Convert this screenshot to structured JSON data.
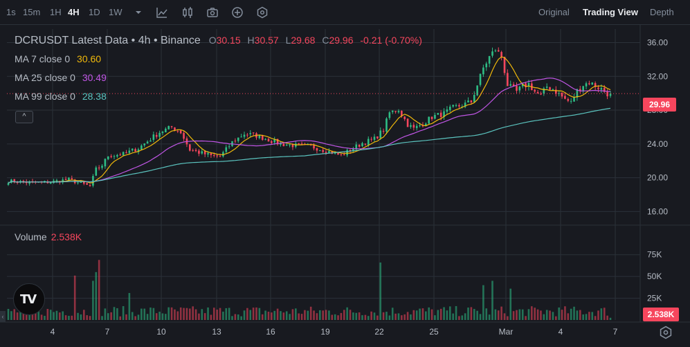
{
  "toolbar": {
    "timeframes": [
      "1s",
      "15m",
      "1H",
      "4H",
      "1D",
      "1W"
    ],
    "active_timeframe": "4H",
    "views": [
      "Original",
      "Trading View",
      "Depth"
    ],
    "active_view": "Trading View",
    "icons": [
      "chevron-down-icon",
      "indicator-icon",
      "candle-type-icon",
      "camera-icon",
      "add-icon",
      "settings-hex-icon"
    ]
  },
  "legend": {
    "title": "DCRUSDT Latest Data • 4h • Binance",
    "open_label": "O",
    "open": "30.15",
    "high_label": "H",
    "high": "30.57",
    "low_label": "L",
    "low": "29.68",
    "close_label": "C",
    "close": "29.96",
    "change": "-0.21 (-0.70%)",
    "ma7_label": "MA 7 close 0",
    "ma7_value": "30.60",
    "ma25_label": "MA 25 close 0",
    "ma25_value": "30.49",
    "ma99_label": "MA 99 close 0",
    "ma99_value": "28.38",
    "collapse_symbol": "^"
  },
  "volume": {
    "label": "Volume",
    "value": "2.538K",
    "tag": "2.538K"
  },
  "last_price_tag": "29.96",
  "colors": {
    "up": "#2ebd85",
    "down": "#f6465d",
    "ma7": "#f0b90b",
    "ma25": "#c156e6",
    "ma99": "#5bc4bf",
    "background": "#181a20",
    "grid": "#2b3139"
  },
  "chart_data": {
    "type": "candlestick",
    "title": "DCRUSDT Latest Data • 4h • Binance",
    "price_axis": {
      "ticks": [
        "36.00",
        "32.00",
        "28.00",
        "24.00",
        "20.00",
        "16.00"
      ],
      "range": [
        14.8,
        37.6
      ]
    },
    "volume_axis": {
      "ticks": [
        "75K",
        "50K",
        "25K"
      ],
      "range": [
        0,
        105000
      ]
    },
    "x_axis": {
      "ticks": [
        "4",
        "7",
        "10",
        "13",
        "16",
        "19",
        "22",
        "25",
        "Mar",
        "4",
        "7"
      ]
    },
    "close_waypoints": [
      [
        0,
        19.6
      ],
      [
        8,
        19.4
      ],
      [
        14,
        19.5
      ],
      [
        20,
        19.8
      ],
      [
        24,
        19.3
      ],
      [
        27,
        19.0
      ],
      [
        29,
        21.0
      ],
      [
        31,
        21.5
      ],
      [
        33,
        22.6
      ],
      [
        38,
        22.8
      ],
      [
        43,
        23.5
      ],
      [
        47,
        24.6
      ],
      [
        50,
        25.4
      ],
      [
        54,
        26.0
      ],
      [
        57,
        25.4
      ],
      [
        60,
        23.3
      ],
      [
        64,
        22.9
      ],
      [
        67,
        22.6
      ],
      [
        70,
        22.5
      ],
      [
        74,
        24.2
      ],
      [
        78,
        25.2
      ],
      [
        82,
        25.0
      ],
      [
        86,
        24.5
      ],
      [
        90,
        24.0
      ],
      [
        95,
        23.8
      ],
      [
        100,
        23.7
      ],
      [
        104,
        23.3
      ],
      [
        107,
        23.0
      ],
      [
        110,
        22.6
      ],
      [
        113,
        23.3
      ],
      [
        117,
        24.1
      ],
      [
        121,
        24.6
      ],
      [
        124,
        25.7
      ],
      [
        126,
        27.7
      ],
      [
        129,
        28.1
      ],
      [
        132,
        26.3
      ],
      [
        134,
        25.8
      ],
      [
        137,
        26.4
      ],
      [
        140,
        27.2
      ],
      [
        144,
        27.6
      ],
      [
        147,
        28.3
      ],
      [
        150,
        28.6
      ],
      [
        153,
        29.0
      ],
      [
        155,
        31.0
      ],
      [
        157,
        33.0
      ],
      [
        159,
        34.3
      ],
      [
        161,
        35.2
      ],
      [
        163,
        34.3
      ],
      [
        165,
        31.0
      ],
      [
        166,
        30.7
      ],
      [
        168,
        30.2
      ],
      [
        170,
        30.8
      ],
      [
        172,
        31.1
      ],
      [
        174,
        30.2
      ],
      [
        176,
        29.7
      ],
      [
        178,
        30.8
      ],
      [
        180,
        30.5
      ],
      [
        182,
        29.9
      ],
      [
        184,
        29.3
      ],
      [
        186,
        28.9
      ],
      [
        188,
        30.3
      ],
      [
        190,
        31.0
      ],
      [
        192,
        31.3
      ],
      [
        194,
        30.9
      ],
      [
        196,
        30.5
      ],
      [
        198,
        29.96
      ]
    ],
    "ma7_last": 30.6,
    "ma25_last": 30.49,
    "ma99_last": 28.38,
    "last_close": 29.96,
    "volume_spikes": [
      [
        30,
        69000
      ],
      [
        29,
        55000
      ],
      [
        28,
        45000
      ],
      [
        22,
        51000
      ],
      [
        123,
        66000
      ],
      [
        157,
        40000
      ],
      [
        160,
        45000
      ],
      [
        166,
        36000
      ],
      [
        40,
        31000
      ],
      [
        10,
        22000
      ]
    ]
  }
}
